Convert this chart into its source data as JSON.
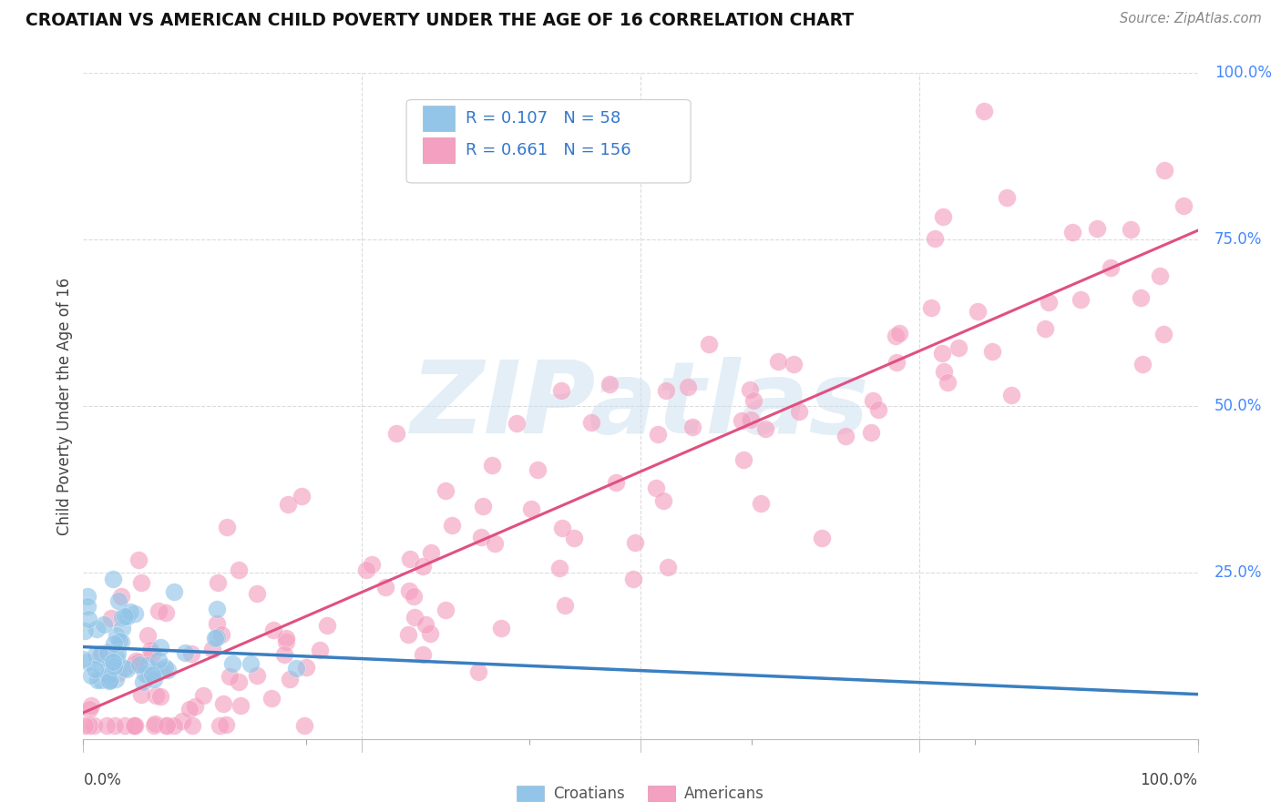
{
  "title": "CROATIAN VS AMERICAN CHILD POVERTY UNDER THE AGE OF 16 CORRELATION CHART",
  "source": "Source: ZipAtlas.com",
  "ylabel": "Child Poverty Under the Age of 16",
  "legend_croatians_R": "0.107",
  "legend_croatians_N": "58",
  "legend_americans_R": "0.661",
  "legend_americans_N": "156",
  "croatian_color": "#92c5e8",
  "american_color": "#f4a0c0",
  "croatian_line_color": "#3a7fc1",
  "american_line_color": "#e05080",
  "croatian_dash_color": "#7ab8d8",
  "watermark_color": "#c8dff0",
  "background_color": "#ffffff",
  "grid_color": "#d8d8d8",
  "right_label_color": "#4488ff",
  "ylim": [
    0,
    1.0
  ],
  "xlim": [
    0,
    1.0
  ]
}
